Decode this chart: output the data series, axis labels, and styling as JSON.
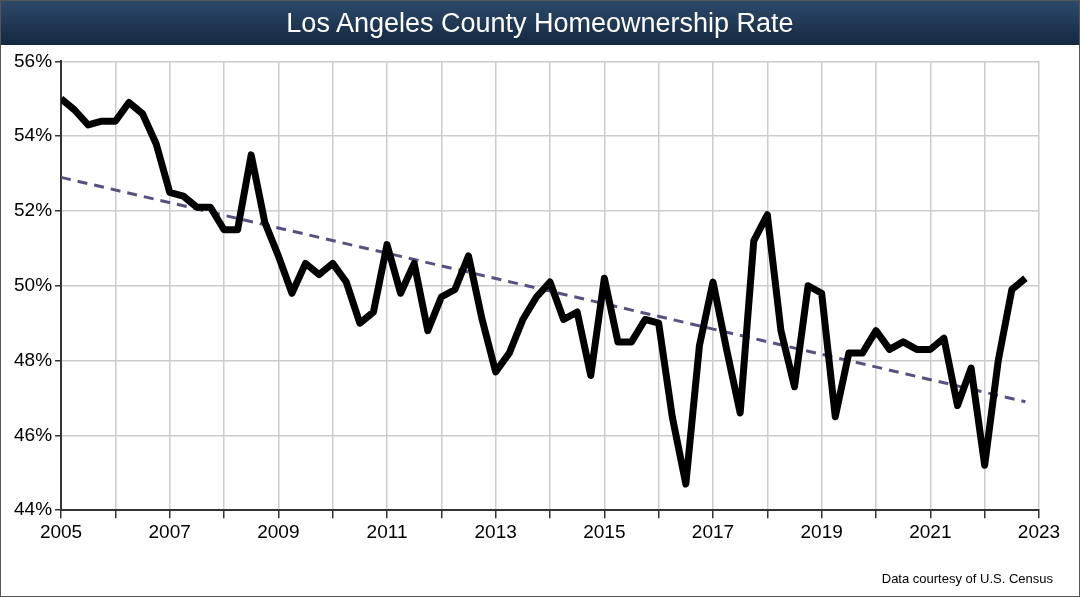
{
  "chart_data": {
    "type": "line",
    "title": "Los Angeles County Homeownership Rate",
    "x": [
      2005,
      2005.25,
      2005.5,
      2005.75,
      2006,
      2006.25,
      2006.5,
      2006.75,
      2007,
      2007.25,
      2007.5,
      2007.75,
      2008,
      2008.25,
      2008.5,
      2008.75,
      2009,
      2009.25,
      2009.5,
      2009.75,
      2010,
      2010.25,
      2010.5,
      2010.75,
      2011,
      2011.25,
      2011.5,
      2011.75,
      2012,
      2012.25,
      2012.5,
      2012.75,
      2013,
      2013.25,
      2013.5,
      2013.75,
      2014,
      2014.25,
      2014.5,
      2014.75,
      2015,
      2015.25,
      2015.5,
      2015.75,
      2016,
      2016.25,
      2016.5,
      2016.75,
      2017,
      2017.25,
      2017.5,
      2017.75,
      2018,
      2018.25,
      2018.5,
      2018.75,
      2019,
      2019.25,
      2019.5,
      2019.75,
      2020,
      2020.25,
      2020.5,
      2020.75,
      2021,
      2021.25,
      2021.5,
      2021.75,
      2022,
      2022.25,
      2022.5,
      2022.75
    ],
    "series": [
      {
        "color": "#000000",
        "line_style": "solid",
        "values": [
          55.0,
          54.7,
          54.3,
          54.4,
          54.4,
          54.9,
          54.6,
          53.8,
          52.5,
          52.4,
          52.1,
          52.1,
          51.5,
          51.5,
          53.5,
          51.7,
          50.8,
          49.8,
          50.6,
          50.3,
          50.6,
          50.1,
          49.0,
          49.3,
          51.1,
          49.8,
          50.6,
          48.8,
          49.7,
          49.9,
          50.8,
          49.1,
          47.7,
          48.2,
          49.1,
          49.7,
          50.1,
          49.1,
          49.3,
          47.6,
          50.2,
          48.5,
          48.5,
          49.1,
          49.0,
          46.5,
          44.7,
          48.4,
          50.1,
          48.3,
          46.6,
          51.2,
          51.9,
          48.8,
          47.3,
          50.0,
          49.8,
          46.5,
          48.2,
          48.2,
          48.8,
          48.3,
          48.5,
          48.3,
          48.3,
          48.6,
          46.8,
          47.8,
          45.2,
          48.0,
          49.9,
          50.2
        ]
      },
      {
        "type": "line",
        "color": "#5b4f7f",
        "line_style": "dashed",
        "x": [
          2005,
          2022.75
        ],
        "values": [
          52.9,
          46.9
        ]
      }
    ],
    "xlim": [
      2005,
      2023
    ],
    "xticks": [
      2005,
      {
        "value": 2006,
        "label": null
      },
      2007,
      {
        "value": 2008,
        "label": null
      },
      2009,
      {
        "value": 2010,
        "label": null
      },
      2011,
      {
        "value": 2012,
        "label": null
      },
      2013,
      {
        "value": 2014,
        "label": null
      },
      2015,
      {
        "value": 2016,
        "label": null
      },
      2017,
      {
        "value": 2018,
        "label": null
      },
      2019,
      {
        "value": 2020,
        "label": null
      },
      2021,
      {
        "value": 2022,
        "label": null
      },
      2023
    ],
    "ylim": [
      44,
      56
    ],
    "yticks": [
      {
        "value": 44,
        "label": "44%"
      },
      {
        "value": 46,
        "label": "46%"
      },
      {
        "value": 48,
        "label": "48%"
      },
      {
        "value": 50,
        "label": "50%"
      },
      {
        "value": 52,
        "label": "52%"
      },
      {
        "value": 54,
        "label": "54%"
      },
      {
        "value": 56,
        "label": "56%"
      }
    ],
    "grid": true,
    "legend": false,
    "marker": "none",
    "annotations": [
      "Data courtesy of U.S. Census"
    ]
  }
}
